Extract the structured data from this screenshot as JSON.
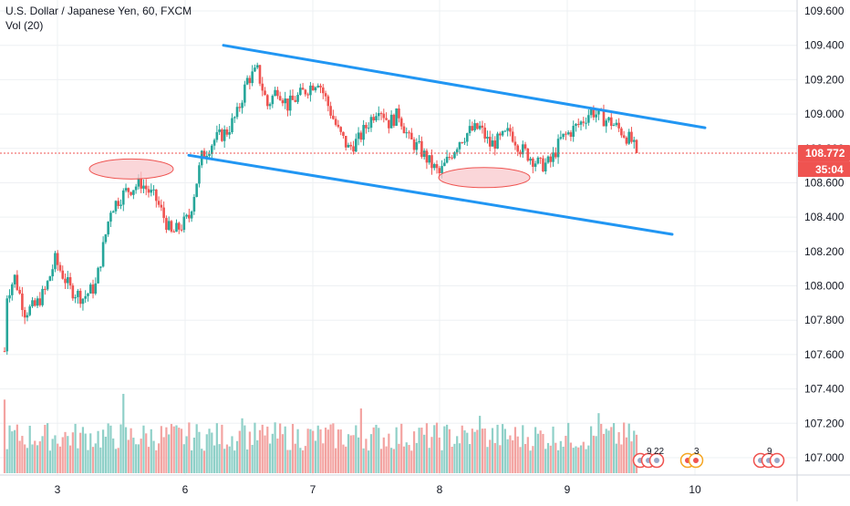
{
  "legend": {
    "symbol_line": "U.S. Dollar / Japanese Yen, 60, FXCM",
    "volume_line": "Vol (20)"
  },
  "price_axis": {
    "ticks": [
      "109.600",
      "109.400",
      "109.200",
      "109.000",
      "108.800",
      "108.600",
      "108.400",
      "108.200",
      "108.000",
      "107.800",
      "107.600",
      "107.400",
      "107.200",
      "107.000"
    ],
    "last_price_label": "108.772",
    "countdown_label": "35:04"
  },
  "time_axis": {
    "ticks": [
      "3",
      "6",
      "7",
      "8",
      "9",
      "10"
    ]
  },
  "event_markers": [
    {
      "label": "9",
      "sub": "22",
      "icon": "us-flag-icon"
    },
    {
      "label": "3",
      "icon": "japan-flag-icon"
    },
    {
      "label": "9",
      "icon": "us-flag-icon"
    }
  ],
  "colors": {
    "up": "#26a69a",
    "down": "#ef5350",
    "volume_up": "#8fd0c8",
    "volume_down": "#f3a3a1",
    "channel": "#2196f3",
    "ellipse_fill": "#f8c8cc",
    "ellipse_stroke": "#ef5350",
    "last_price": "#ef5350",
    "countdown_bg": "#ef5350"
  },
  "chart_data": {
    "type": "candlestick",
    "title": "",
    "symbol": "USD/JPY",
    "interval": "60",
    "ylim": [
      106.9,
      109.65
    ],
    "last_price": 108.772,
    "x_categories": [
      "3",
      "6",
      "7",
      "8",
      "9",
      "10"
    ],
    "key_points": [
      {
        "label": "start",
        "price": 107.6
      },
      {
        "label": "day3_low",
        "price": 107.8
      },
      {
        "label": "day3_high",
        "price": 108.22
      },
      {
        "label": "day5_high",
        "price": 108.68
      },
      {
        "label": "day6_high",
        "price": 109.38
      },
      {
        "label": "day7_high",
        "price": 109.27
      },
      {
        "label": "day8_low",
        "price": 108.52
      },
      {
        "label": "day8_high",
        "price": 109.1
      },
      {
        "label": "day9_high",
        "price": 109.05
      },
      {
        "label": "current",
        "price": 108.772
      }
    ],
    "channel": {
      "upper": [
        {
          "price": 109.4
        },
        {
          "price": 108.92
        }
      ],
      "lower": [
        {
          "price": 108.76
        },
        {
          "price": 108.3
        }
      ]
    },
    "highlight_ellipses": [
      {
        "price": 108.68
      },
      {
        "price": 108.63
      }
    ],
    "grid": true
  }
}
